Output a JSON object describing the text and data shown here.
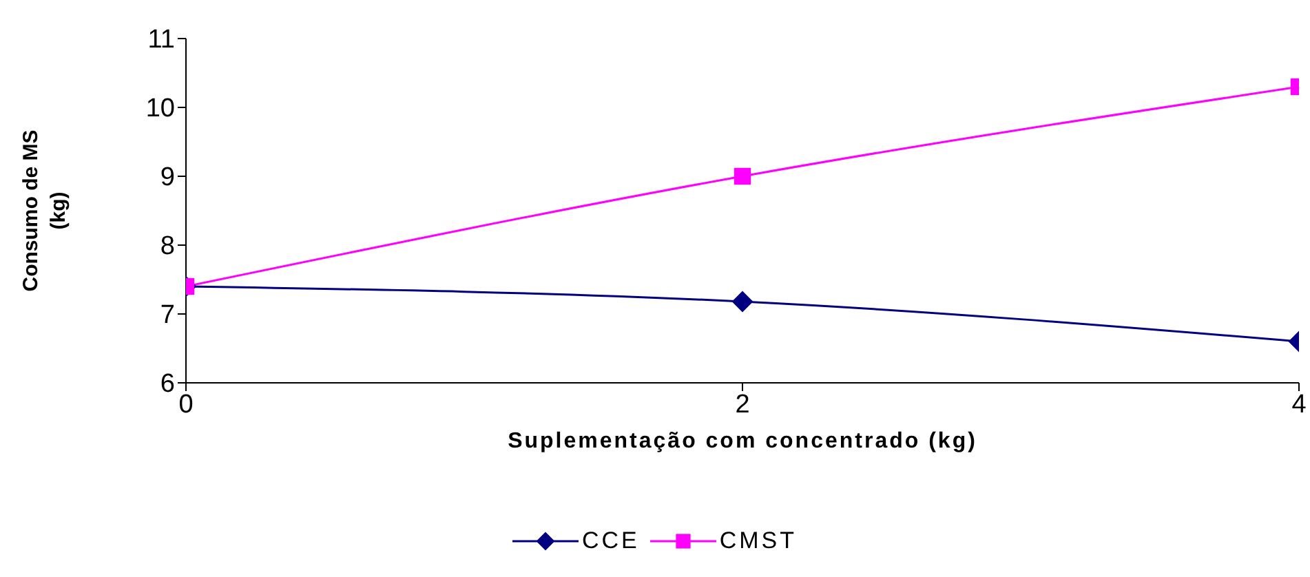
{
  "chart_data": {
    "type": "line",
    "xlabel": "Suplementação com concentrado (kg)",
    "ylabel": "Consumo de MS\n(kg)",
    "x": [
      0,
      2,
      4
    ],
    "xlim": [
      0,
      4
    ],
    "xticks": [
      0,
      2,
      4
    ],
    "ylim": [
      6,
      11
    ],
    "yticks": [
      6,
      7,
      8,
      9,
      10,
      11
    ],
    "grid": false,
    "legend": "bottom",
    "line_style": "solid",
    "series": [
      {
        "name": "CCE",
        "color": "#000080",
        "values": [
          7.4,
          7.18,
          6.6
        ],
        "marker": "diamond"
      },
      {
        "name": "CMST",
        "color": "#ff00ff",
        "values": [
          7.4,
          9.0,
          10.3
        ],
        "marker": "square"
      }
    ]
  }
}
